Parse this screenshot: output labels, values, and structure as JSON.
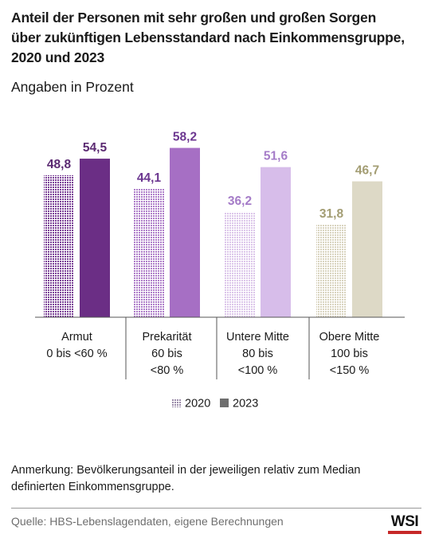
{
  "chart_data": {
    "type": "bar",
    "title_lines": [
      "Anteil der Personen mit sehr großen und großen Sorgen",
      "über zukünftigen Lebensstandard nach Einkommensgruppe,",
      "2020 und 2023"
    ],
    "subtitle": "Angaben in Prozent",
    "categories": [
      {
        "lines": [
          "Armut",
          "0 bis <60 %"
        ]
      },
      {
        "lines": [
          "Prekarität",
          "60 bis",
          "<80 %"
        ]
      },
      {
        "lines": [
          "Untere Mitte",
          "80 bis",
          "<100 %"
        ]
      },
      {
        "lines": [
          "Obere Mitte",
          "100 bis",
          "<150 %"
        ]
      }
    ],
    "series": [
      {
        "name": "2020",
        "values": [
          48.8,
          44.1,
          36.2,
          31.8
        ],
        "labels": [
          "48,8",
          "44,1",
          "36,2",
          "31,8"
        ],
        "pattern": "dotted"
      },
      {
        "name": "2023",
        "values": [
          54.5,
          58.2,
          51.6,
          46.7
        ],
        "labels": [
          "54,5",
          "58,2",
          "51,6",
          "46,7"
        ],
        "pattern": "solid"
      }
    ],
    "colors": {
      "2020": [
        "#7a3f96",
        "#ae7dc9",
        "#dcc6ea",
        "#d9d4bf"
      ],
      "2023": [
        "#6b2e85",
        "#a66fc4",
        "#d7bdea",
        "#ddd9c6"
      ],
      "labels": [
        "#5b2a72",
        "#6c3790",
        "#a57cc8",
        "#a39d73"
      ]
    },
    "ylim": [
      0,
      100
    ],
    "legend_position": "bottom-center"
  },
  "note_lines": [
    "Anmerkung: Bevölkerungsanteil in der jeweiligen relativ zum Median",
    "definierten Einkommensgruppe."
  ],
  "source": "Quelle: HBS-Lebenslagendaten, eigene Berechnungen",
  "logo": {
    "text": "WSI",
    "accent": "#c62828"
  }
}
